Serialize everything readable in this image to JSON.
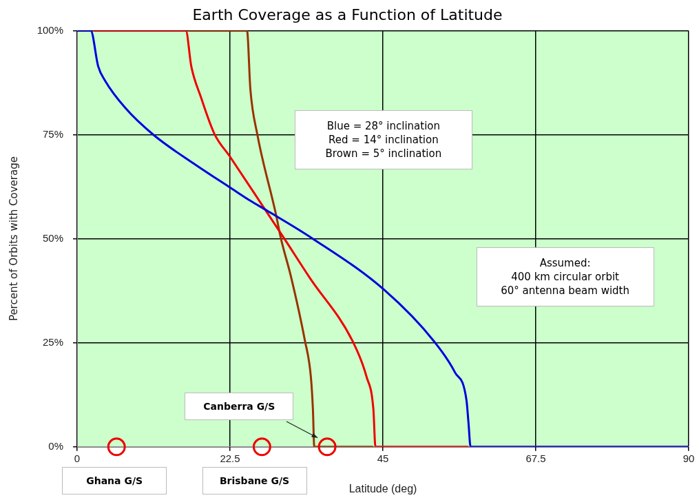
{
  "chart_data": {
    "type": "line",
    "title": "Earth Coverage as a Function of Latitude",
    "xlabel": "Latitude (deg)",
    "ylabel": "Percent of Orbits with Coverage",
    "xlim": [
      0,
      90
    ],
    "xticks": [
      0,
      22.5,
      45,
      67.5,
      90
    ],
    "ylim": [
      0,
      100
    ],
    "yticks": [
      {
        "value": 0,
        "label": "0%"
      },
      {
        "value": 25,
        "label": "25%"
      },
      {
        "value": 50,
        "label": "50%"
      },
      {
        "value": 75,
        "label": "75%"
      },
      {
        "value": 100,
        "label": "100%"
      }
    ],
    "grid": true,
    "legend": false,
    "marker": "none",
    "line_style": "solid",
    "series": [
      {
        "color": "#0000dd",
        "x": [
          0,
          2.0,
          3.1,
          4.1,
          7.1,
          11.2,
          17.2,
          22.5,
          25.5,
          27.9,
          34.5,
          45.2,
          52.6,
          55.6,
          57.3,
          57.6,
          57.9,
          90
        ],
        "values": [
          100,
          100,
          91.4,
          88,
          81.4,
          75,
          68,
          62.3,
          59.1,
          56.8,
          50.2,
          37.7,
          25.2,
          17.9,
          11.2,
          5.7,
          0,
          0
        ]
      },
      {
        "color": "#ee0000",
        "x": [
          2.5,
          16.0,
          16.8,
          18.2,
          20.2,
          22.5,
          27.5,
          30.5,
          34.2,
          40.6,
          42.6,
          43.6,
          43.9,
          57.5
        ],
        "values": [
          100,
          100,
          91.4,
          84.1,
          75.2,
          69.7,
          57.4,
          50,
          40.7,
          25.2,
          16.8,
          9,
          0,
          0
        ]
      },
      {
        "color": "#993300",
        "x": [
          16.5,
          25.0,
          25.5,
          26.5,
          29.2,
          30.0,
          31.5,
          33.5,
          34.4,
          34.7,
          34.9,
          43.5
        ],
        "values": [
          100,
          100,
          85.8,
          75.2,
          56.3,
          50,
          40.7,
          25.7,
          16.8,
          9,
          0,
          0
        ]
      },
      {
        "type": "scatter",
        "marker": "circle",
        "color": "#ee0000",
        "x": [
          5.8,
          27.2,
          36.8
        ],
        "values": [
          0,
          0,
          0
        ]
      }
    ],
    "annotations": [
      "Blue = 28° inclination\nRed = 14° inclination\nBrown = 5° inclination",
      "Assumed:\n400 km circular orbit\n60° antenna beam width",
      "Ghana G/S",
      "Brisbane G/S",
      "Canberra G/S"
    ]
  }
}
